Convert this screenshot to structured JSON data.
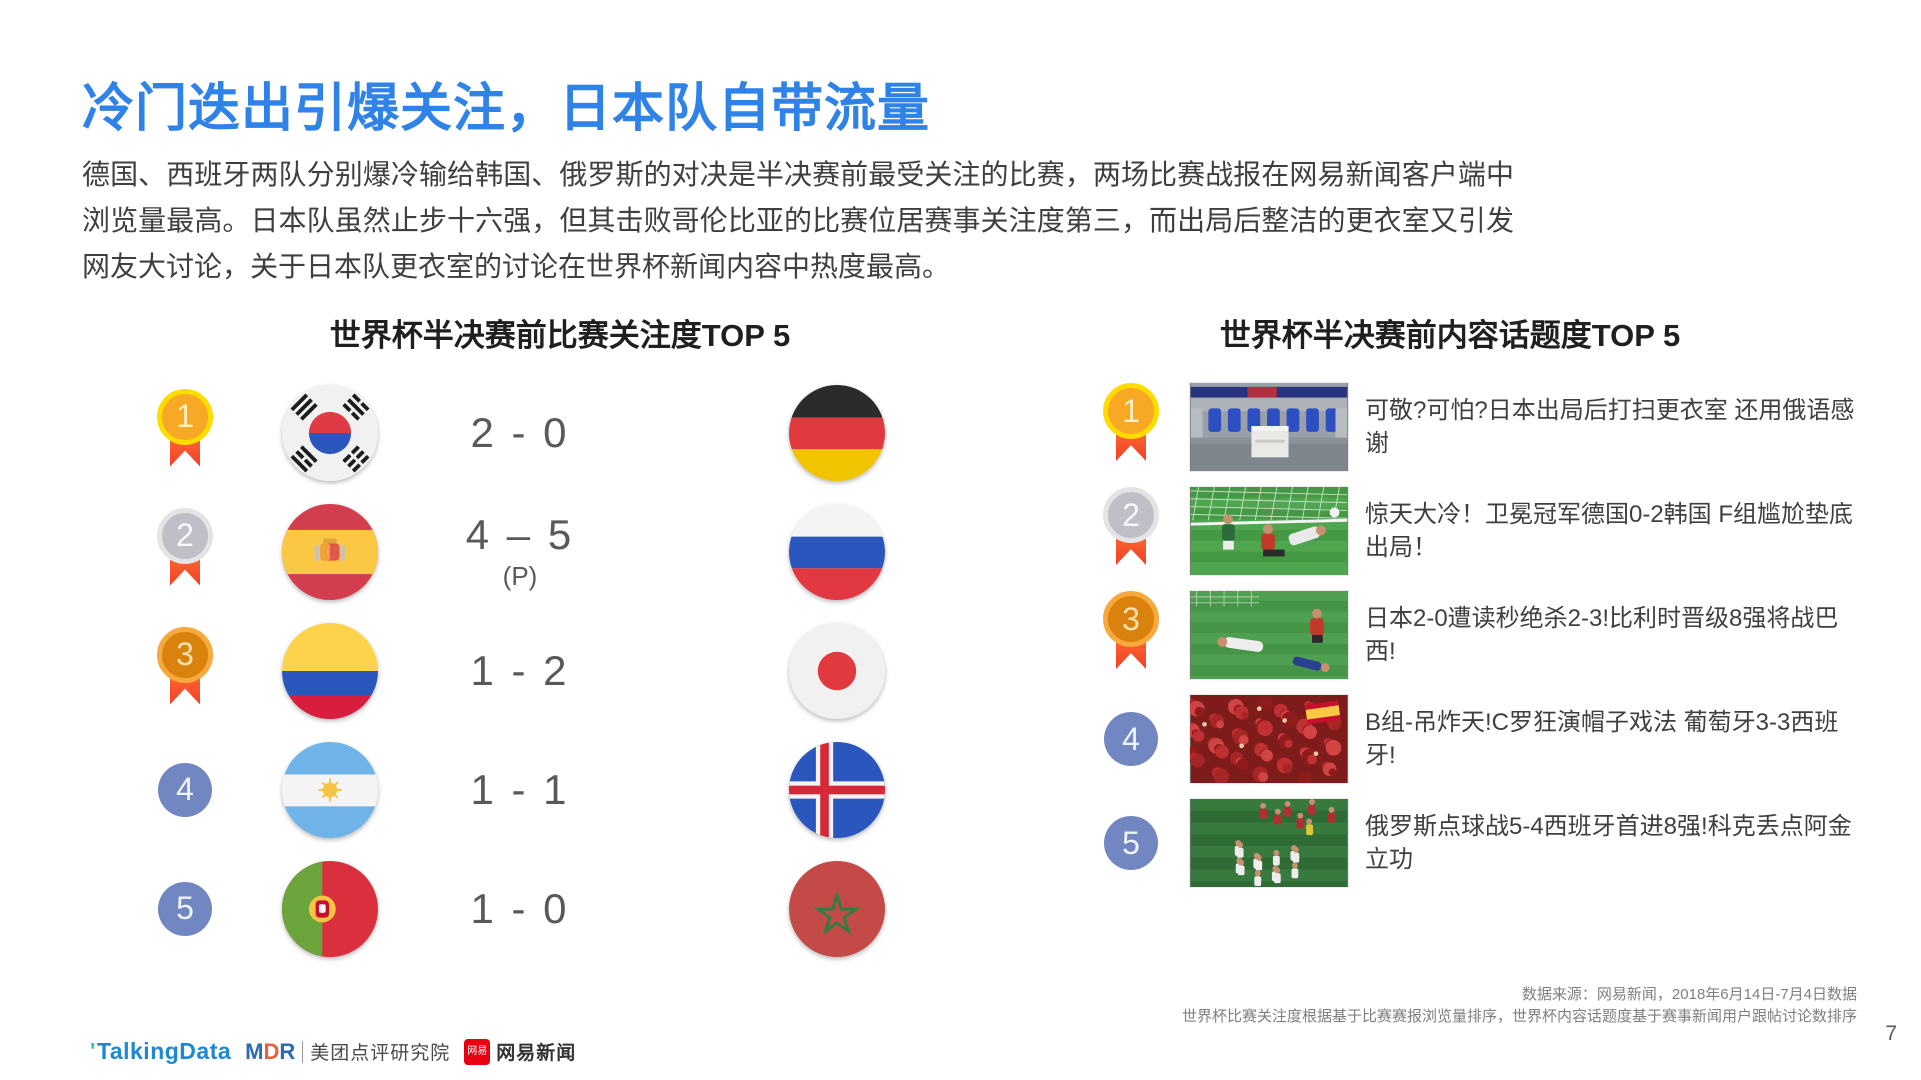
{
  "slide": {
    "title": "冷门迭出引爆关注，日本队自带流量",
    "body_paragraph": "德国、西班牙两队分别爆冷输给韩国、俄罗斯的对决是半决赛前最受关注的比赛，两场比赛战报在网易新闻客户端中浏览量最高。日本队虽然止步十六强，但其击败哥伦比亚的比赛位居赛事关注度第三，而出局后整洁的更衣室又引发网友大讨论，关于日本队更衣室的讨论在世界杯新闻内容中热度最高。",
    "page_number": "7"
  },
  "colors": {
    "title_blue": "#2E82E8",
    "body_text": "#3F3F3F",
    "score_gray": "#595959",
    "rank_circle_blue": "#7286C2",
    "medal_gold_ring": "#FFDC00",
    "medal_gold_fill": "#F7A825",
    "medal_silver_ring": "#E4E4E6",
    "medal_silver_fill": "#BFBFC7",
    "medal_bronze_ring": "#F7A93D",
    "medal_bronze_fill": "#D9830E",
    "ribbon_orange": "#F23F2C"
  },
  "left_panel": {
    "title": "世界杯半决赛前比赛关注度TOP 5",
    "rows": [
      {
        "rank": "1",
        "medal": "gold",
        "home_flag": "flag-south-korea",
        "home_team": "South Korea",
        "score": "2 - 0",
        "score_note": "",
        "away_flag": "flag-germany",
        "away_team": "Germany"
      },
      {
        "rank": "2",
        "medal": "silver",
        "home_flag": "flag-spain",
        "home_team": "Spain",
        "score": "4 – 5",
        "score_note": "(P)",
        "away_flag": "flag-russia",
        "away_team": "Russia"
      },
      {
        "rank": "3",
        "medal": "bronze",
        "home_flag": "flag-colombia",
        "home_team": "Colombia",
        "score": "1 - 2",
        "score_note": "",
        "away_flag": "flag-japan",
        "away_team": "Japan"
      },
      {
        "rank": "4",
        "medal": "plain",
        "home_flag": "flag-argentina",
        "home_team": "Argentina",
        "score": "1 - 1",
        "score_note": "",
        "away_flag": "flag-iceland",
        "away_team": "Iceland"
      },
      {
        "rank": "5",
        "medal": "plain",
        "home_flag": "flag-portugal",
        "home_team": "Portugal",
        "score": "1 - 0",
        "score_note": "",
        "away_flag": "flag-morocco",
        "away_team": "Morocco"
      }
    ]
  },
  "right_panel": {
    "title": "世界杯半决赛前内容话题度TOP 5",
    "rows": [
      {
        "rank": "1",
        "medal": "gold",
        "thumbnail": "locker-room-photo",
        "headline": "可敬?可怕?日本出局后打扫更衣室 还用俄语感谢"
      },
      {
        "rank": "2",
        "medal": "silver",
        "thumbnail": "germany-korea-match-photo",
        "headline": "惊天大冷！卫冕冠军德国0-2韩国 F组尴尬垫底出局！"
      },
      {
        "rank": "3",
        "medal": "bronze",
        "thumbnail": "japan-belgium-match-photo",
        "headline": "日本2-0遭读秒绝杀2-3!比利时晋级8强将战巴西!"
      },
      {
        "rank": "4",
        "medal": "plain",
        "thumbnail": "spain-fans-photo",
        "headline": "B组-吊炸天!C罗狂演帽子戏法 葡萄牙3-3西班牙!"
      },
      {
        "rank": "5",
        "medal": "plain",
        "thumbnail": "russia-celebration-photo",
        "headline": "俄罗斯点球战5-4西班牙首进8强!科克丢点阿金立功"
      }
    ]
  },
  "footer": {
    "source_line1": "数据来源：网易新闻，2018年6月14日-7月4日数据",
    "source_line2": "世界杯比赛关注度根据基于比赛赛报浏览量排序，世界杯内容话题度基于赛事新闻用户跟帖讨论数排序",
    "logos": {
      "talkingdata": "TalkingData",
      "mdr_letters": [
        "M",
        "D",
        "R"
      ],
      "mdr_label": "美团点评研究院",
      "netease_badge": "网易",
      "netease_label": "网易新闻"
    }
  }
}
